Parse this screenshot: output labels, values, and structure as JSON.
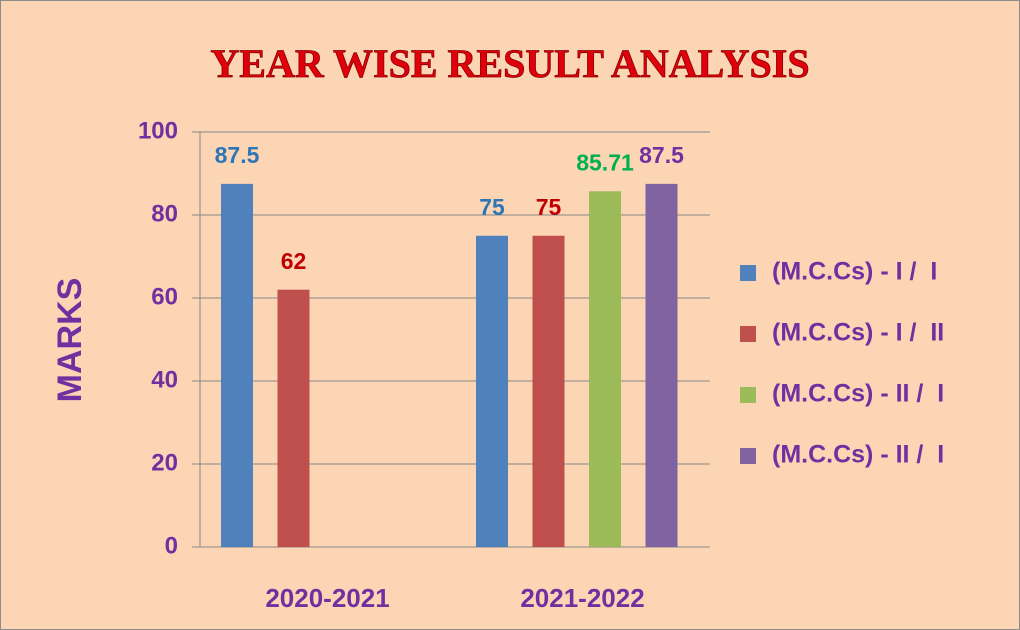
{
  "chart_data": {
    "type": "bar",
    "title": "YEAR WISE RESULT ANALYSIS",
    "y_label": "MARKS",
    "categories": [
      "2020-2021",
      "2021-2022"
    ],
    "series": [
      {
        "name": "(M.C.Cs) - I /  I",
        "color": "#4f81bd",
        "label_color": "#2e75b6",
        "values": [
          87.5,
          75
        ]
      },
      {
        "name": "(M.C.Cs) - I /  II",
        "color": "#c0504d",
        "label_color": "#c00000",
        "values": [
          62,
          75
        ]
      },
      {
        "name": "(M.C.Cs) - II /  I",
        "color": "#9bbb59",
        "label_color": "#00b050",
        "values": [
          null,
          85.71
        ]
      },
      {
        "name": "(M.C.Cs) - II /  I",
        "color": "#8064a2",
        "label_color": "#7030a0",
        "values": [
          null,
          87.5
        ]
      }
    ],
    "ylim": [
      0,
      100
    ],
    "yticks": [
      0,
      20,
      40,
      60,
      80,
      100
    ],
    "grid": true,
    "legend": "right"
  }
}
